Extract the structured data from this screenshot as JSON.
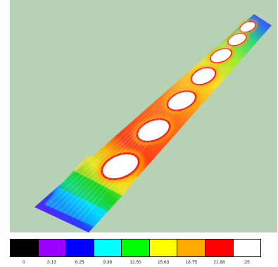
{
  "scene": {
    "background": "#b7d1b5",
    "hotspots_count_label": "",
    "strip_colors": {
      "violet": "#8a00ff",
      "blue": "#1e3dff",
      "cyan": "#00eaff",
      "green": "#11d61a",
      "yellow": "#e7ff21",
      "orange": "#ffa300",
      "red": "#ff1717",
      "white": "#ffffff"
    }
  },
  "legend": {
    "swatches": [
      {
        "color": "#000000",
        "value": "0"
      },
      {
        "color": "#9b00ff",
        "value": "3.13"
      },
      {
        "color": "#0000ff",
        "value": "6.25"
      },
      {
        "color": "#00ffff",
        "value": "9.38"
      },
      {
        "color": "#00ff00",
        "value": "12.50"
      },
      {
        "color": "#ffff00",
        "value": "15.63"
      },
      {
        "color": "#ffaa00",
        "value": "18.75"
      },
      {
        "color": "#ff0000",
        "value": "21.88"
      },
      {
        "color": "#ffffff",
        "value": "25"
      }
    ]
  }
}
